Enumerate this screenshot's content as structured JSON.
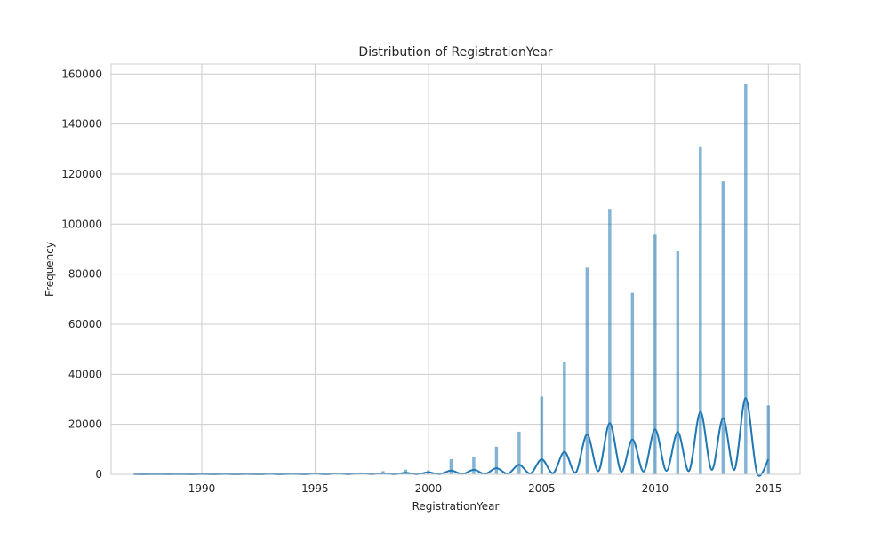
{
  "chart_data": {
    "type": "bar",
    "title": "Distribution of RegistrationYear",
    "xlabel": "RegistrationYear",
    "ylabel": "Frequency",
    "xlim": [
      1986,
      2016.4
    ],
    "ylim": [
      0,
      164000
    ],
    "xticks": [
      1990,
      1995,
      2000,
      2005,
      2010,
      2015
    ],
    "yticks": [
      0,
      20000,
      40000,
      60000,
      80000,
      100000,
      120000,
      140000,
      160000
    ],
    "grid": true,
    "bar_color": "#1f77b4",
    "kde_color": "#1f77b4",
    "series": [
      {
        "kind": "histogram",
        "x": [
          1987,
          1988,
          1989,
          1990,
          1991,
          1992,
          1993,
          1994,
          1995,
          1996,
          1997,
          1998,
          1999,
          2000,
          2001,
          2002,
          2003,
          2004,
          2005,
          2006,
          2007,
          2008,
          2009,
          2010,
          2011,
          2012,
          2013,
          2014,
          2015
        ],
        "values": [
          50,
          60,
          70,
          80,
          100,
          120,
          150,
          200,
          300,
          500,
          700,
          1200,
          1800,
          1500,
          6000,
          6800,
          11000,
          17000,
          31000,
          45000,
          82500,
          106000,
          72500,
          96000,
          89000,
          131000,
          117000,
          156000,
          27500
        ]
      },
      {
        "kind": "kde",
        "x": [
          1987,
          1988,
          1989,
          1990,
          1991,
          1992,
          1993,
          1994,
          1995,
          1996,
          1997,
          1998,
          1999,
          2000,
          2001,
          2002,
          2003,
          2004,
          2005,
          2006,
          2007,
          2008,
          2009,
          2010,
          2011,
          2012,
          2013,
          2014,
          2015
        ],
        "values": [
          50,
          50,
          60,
          70,
          80,
          100,
          120,
          150,
          200,
          250,
          300,
          400,
          600,
          800,
          1500,
          1800,
          2500,
          3800,
          6000,
          9000,
          16000,
          20500,
          14000,
          18000,
          17000,
          25000,
          22500,
          30500,
          6000
        ]
      }
    ]
  }
}
